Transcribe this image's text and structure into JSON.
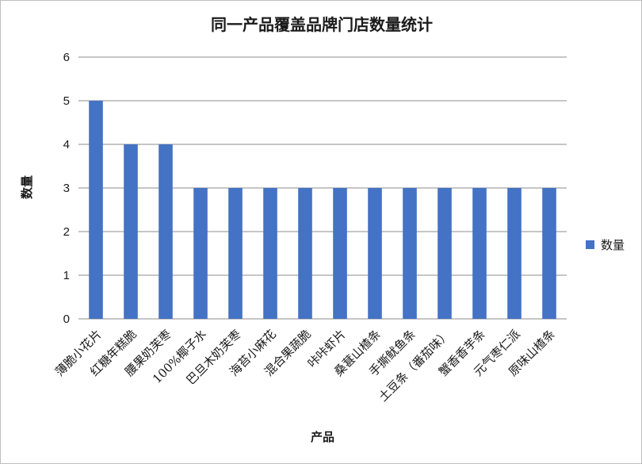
{
  "chart_data": {
    "type": "bar",
    "title": "同一产品覆盖品牌门店数量统计",
    "xlabel": "产品",
    "ylabel": "数量",
    "categories": [
      "薄脆小花片",
      "红糖年糕脆",
      "腰果奶芙枣",
      "100%椰子水",
      "巴旦木奶芙枣",
      "海苔小麻花",
      "混合果蔬脆",
      "咔咔虾片",
      "桑葚山楂条",
      "手撕鱿鱼条",
      "土豆条（番茄味）",
      "蟹香香芋条",
      "元气枣仁派",
      "原味山楂条"
    ],
    "series": [
      {
        "name": "数量",
        "values": [
          5,
          4,
          4,
          3,
          3,
          3,
          3,
          3,
          3,
          3,
          3,
          3,
          3,
          3
        ],
        "color": "#4472c4"
      }
    ],
    "ylim": [
      0,
      6
    ],
    "yticks": [
      0,
      1,
      2,
      3,
      4,
      5,
      6
    ],
    "grid": true,
    "legend": "right",
    "gridline_color": "#8c8c8c"
  }
}
